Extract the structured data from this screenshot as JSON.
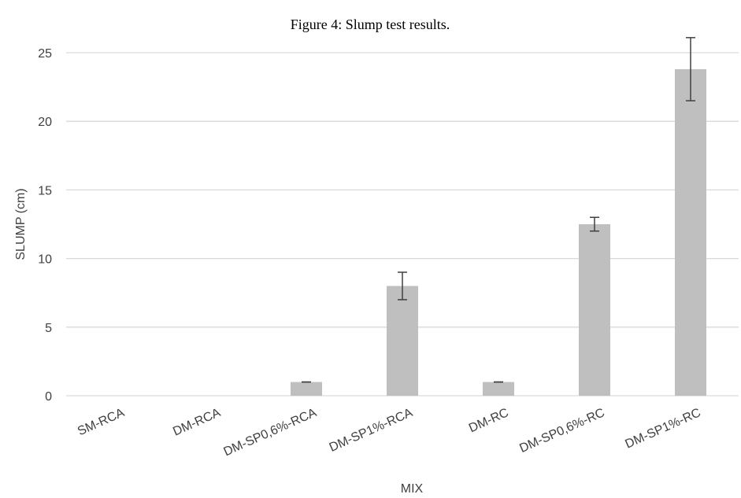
{
  "caption": "Figure 4: Slump test results.",
  "chart_data": {
    "type": "bar",
    "title": "Figure 4: Slump test results.",
    "xlabel": "MIX",
    "ylabel": "SLUMP (cm)",
    "ylim": [
      0,
      25
    ],
    "yticks": [
      0,
      5,
      10,
      15,
      20,
      25
    ],
    "grid": true,
    "legend": "none",
    "categories": [
      "SM-RCA",
      "DM-RCA",
      "DM-SP0,6%-RCA",
      "DM-SP1%-RCA",
      "DM-RC",
      "DM-SP0,6%-RC",
      "DM-SP1%-RC"
    ],
    "values": [
      0,
      0,
      1.0,
      8.0,
      1.0,
      12.5,
      23.8
    ],
    "errors": [
      0,
      0,
      0,
      1.0,
      0,
      0.5,
      2.3
    ],
    "bar_color": "#bfbfbf",
    "error_color": "#404040",
    "grid_color": "#d9d9d9"
  }
}
